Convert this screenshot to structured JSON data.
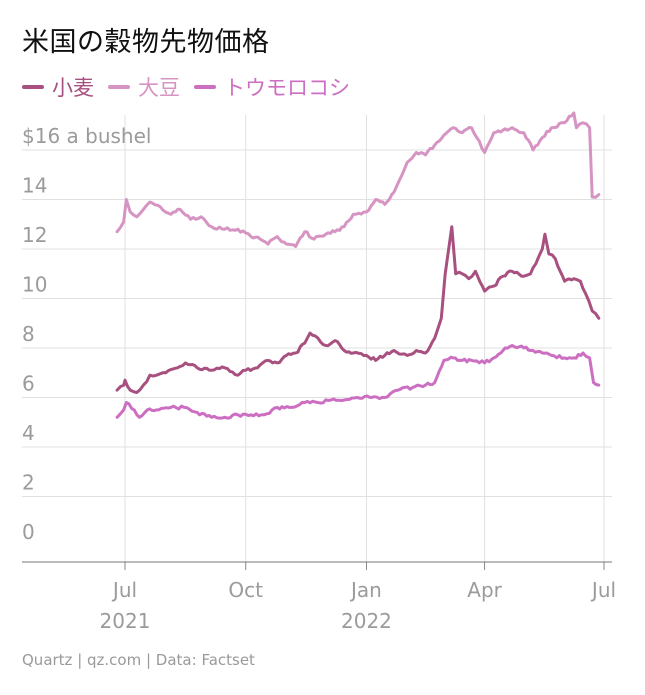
{
  "title": "米国の穀物先物価格",
  "footer": "Quartz | qz.com | Data: Factset",
  "colors": {
    "wheat": "#a8507f",
    "soy": "#d694c3",
    "corn": "#cc6fc2",
    "grid": "#e0e0e0",
    "axis_text": "#9b9b9b"
  },
  "chart_data": {
    "type": "line",
    "title": "米国の穀物先物価格",
    "ylabel": "",
    "xlabel": "",
    "ylim": [
      0,
      17
    ],
    "y_ticks": [
      0,
      2,
      4,
      6,
      8,
      10,
      12,
      14,
      16
    ],
    "y_tick_labels": [
      "0",
      "2",
      "4",
      "6",
      "8",
      "10",
      "12",
      "14",
      "$16 a bushel"
    ],
    "x_range": [
      "2021-06-01",
      "2022-07-01"
    ],
    "x_ticks": [
      {
        "date": "2021-07-01",
        "label": "Jul",
        "year": "2021"
      },
      {
        "date": "2021-10-01",
        "label": "Oct",
        "year": ""
      },
      {
        "date": "2022-01-01",
        "label": "Jan",
        "year": "2022"
      },
      {
        "date": "2022-04-01",
        "label": "Apr",
        "year": ""
      },
      {
        "date": "2022-07-01",
        "label": "Jul",
        "year": ""
      }
    ],
    "grid": true,
    "legend_position": "top-left",
    "series": [
      {
        "name": "小麦",
        "color": "#a8507f",
        "points": [
          [
            "2021-06-25",
            6.3
          ],
          [
            "2021-06-30",
            6.5
          ],
          [
            "2021-07-01",
            6.7
          ],
          [
            "2021-07-05",
            6.3
          ],
          [
            "2021-07-10",
            6.2
          ],
          [
            "2021-07-15",
            6.5
          ],
          [
            "2021-07-20",
            6.9
          ],
          [
            "2021-07-25",
            6.9
          ],
          [
            "2021-08-01",
            7.0
          ],
          [
            "2021-08-10",
            7.2
          ],
          [
            "2021-08-16",
            7.4
          ],
          [
            "2021-08-25",
            7.2
          ],
          [
            "2021-09-05",
            7.1
          ],
          [
            "2021-09-15",
            7.2
          ],
          [
            "2021-09-25",
            6.9
          ],
          [
            "2021-10-01",
            7.1
          ],
          [
            "2021-10-10",
            7.2
          ],
          [
            "2021-10-18",
            7.5
          ],
          [
            "2021-10-25",
            7.4
          ],
          [
            "2021-11-01",
            7.7
          ],
          [
            "2021-11-08",
            7.8
          ],
          [
            "2021-11-15",
            8.2
          ],
          [
            "2021-11-19",
            8.6
          ],
          [
            "2021-11-25",
            8.4
          ],
          [
            "2021-12-01",
            8.1
          ],
          [
            "2021-12-08",
            8.3
          ],
          [
            "2021-12-15",
            7.9
          ],
          [
            "2021-12-22",
            7.8
          ],
          [
            "2022-01-01",
            7.7
          ],
          [
            "2022-01-08",
            7.5
          ],
          [
            "2022-01-15",
            7.7
          ],
          [
            "2022-01-22",
            7.9
          ],
          [
            "2022-02-01",
            7.7
          ],
          [
            "2022-02-08",
            7.9
          ],
          [
            "2022-02-15",
            7.8
          ],
          [
            "2022-02-22",
            8.4
          ],
          [
            "2022-02-27",
            9.2
          ],
          [
            "2022-03-02",
            11.0
          ],
          [
            "2022-03-07",
            12.9
          ],
          [
            "2022-03-10",
            11.0
          ],
          [
            "2022-03-15",
            11.0
          ],
          [
            "2022-03-20",
            10.8
          ],
          [
            "2022-03-25",
            11.1
          ],
          [
            "2022-04-01",
            10.3
          ],
          [
            "2022-04-08",
            10.5
          ],
          [
            "2022-04-15",
            10.9
          ],
          [
            "2022-04-22",
            11.1
          ],
          [
            "2022-05-01",
            10.9
          ],
          [
            "2022-05-06",
            11.0
          ],
          [
            "2022-05-10",
            11.4
          ],
          [
            "2022-05-15",
            12.0
          ],
          [
            "2022-05-17",
            12.6
          ],
          [
            "2022-05-20",
            11.8
          ],
          [
            "2022-05-25",
            11.6
          ],
          [
            "2022-06-01",
            10.7
          ],
          [
            "2022-06-08",
            10.8
          ],
          [
            "2022-06-13",
            10.7
          ],
          [
            "2022-06-17",
            10.2
          ],
          [
            "2022-06-22",
            9.5
          ],
          [
            "2022-06-27",
            9.2
          ]
        ]
      },
      {
        "name": "大豆",
        "color": "#d694c3",
        "points": [
          [
            "2021-06-25",
            12.7
          ],
          [
            "2021-06-30",
            13.1
          ],
          [
            "2021-07-02",
            14.0
          ],
          [
            "2021-07-05",
            13.5
          ],
          [
            "2021-07-10",
            13.3
          ],
          [
            "2021-07-15",
            13.6
          ],
          [
            "2021-07-20",
            13.9
          ],
          [
            "2021-07-28",
            13.7
          ],
          [
            "2021-08-05",
            13.4
          ],
          [
            "2021-08-12",
            13.6
          ],
          [
            "2021-08-20",
            13.2
          ],
          [
            "2021-08-28",
            13.3
          ],
          [
            "2021-09-05",
            12.9
          ],
          [
            "2021-09-15",
            12.8
          ],
          [
            "2021-09-25",
            12.8
          ],
          [
            "2021-10-05",
            12.5
          ],
          [
            "2021-10-12",
            12.4
          ],
          [
            "2021-10-18",
            12.2
          ],
          [
            "2021-10-25",
            12.5
          ],
          [
            "2021-11-01",
            12.2
          ],
          [
            "2021-11-08",
            12.1
          ],
          [
            "2021-11-15",
            12.7
          ],
          [
            "2021-11-22",
            12.4
          ],
          [
            "2021-12-01",
            12.6
          ],
          [
            "2021-12-08",
            12.7
          ],
          [
            "2021-12-15",
            12.9
          ],
          [
            "2021-12-22",
            13.4
          ],
          [
            "2022-01-01",
            13.5
          ],
          [
            "2022-01-08",
            14.0
          ],
          [
            "2022-01-15",
            13.8
          ],
          [
            "2022-01-22",
            14.3
          ],
          [
            "2022-02-01",
            15.5
          ],
          [
            "2022-02-08",
            15.9
          ],
          [
            "2022-02-15",
            15.8
          ],
          [
            "2022-02-22",
            16.2
          ],
          [
            "2022-03-01",
            16.6
          ],
          [
            "2022-03-08",
            16.9
          ],
          [
            "2022-03-15",
            16.7
          ],
          [
            "2022-03-22",
            16.9
          ],
          [
            "2022-04-01",
            15.9
          ],
          [
            "2022-04-08",
            16.7
          ],
          [
            "2022-04-15",
            16.8
          ],
          [
            "2022-04-22",
            16.9
          ],
          [
            "2022-05-01",
            16.7
          ],
          [
            "2022-05-08",
            16.0
          ],
          [
            "2022-05-15",
            16.5
          ],
          [
            "2022-05-22",
            16.9
          ],
          [
            "2022-06-01",
            17.1
          ],
          [
            "2022-06-08",
            17.5
          ],
          [
            "2022-06-10",
            16.9
          ],
          [
            "2022-06-15",
            17.1
          ],
          [
            "2022-06-20",
            16.9
          ],
          [
            "2022-06-22",
            14.1
          ],
          [
            "2022-06-27",
            14.2
          ]
        ]
      },
      {
        "name": "トウモロコシ",
        "color": "#cc6fc2",
        "points": [
          [
            "2021-06-25",
            5.2
          ],
          [
            "2021-06-30",
            5.5
          ],
          [
            "2021-07-02",
            5.8
          ],
          [
            "2021-07-08",
            5.5
          ],
          [
            "2021-07-12",
            5.2
          ],
          [
            "2021-07-18",
            5.5
          ],
          [
            "2021-07-25",
            5.5
          ],
          [
            "2021-08-05",
            5.6
          ],
          [
            "2021-08-15",
            5.6
          ],
          [
            "2021-08-25",
            5.4
          ],
          [
            "2021-09-05",
            5.2
          ],
          [
            "2021-09-15",
            5.2
          ],
          [
            "2021-09-25",
            5.3
          ],
          [
            "2021-10-05",
            5.3
          ],
          [
            "2021-10-15",
            5.3
          ],
          [
            "2021-10-25",
            5.6
          ],
          [
            "2021-11-05",
            5.6
          ],
          [
            "2021-11-15",
            5.8
          ],
          [
            "2021-11-25",
            5.8
          ],
          [
            "2021-12-05",
            5.9
          ],
          [
            "2021-12-15",
            5.9
          ],
          [
            "2021-12-25",
            6.0
          ],
          [
            "2022-01-05",
            6.0
          ],
          [
            "2022-01-15",
            6.0
          ],
          [
            "2022-01-25",
            6.3
          ],
          [
            "2022-02-05",
            6.4
          ],
          [
            "2022-02-15",
            6.5
          ],
          [
            "2022-02-22",
            6.6
          ],
          [
            "2022-03-01",
            7.5
          ],
          [
            "2022-03-08",
            7.6
          ],
          [
            "2022-03-15",
            7.5
          ],
          [
            "2022-03-22",
            7.5
          ],
          [
            "2022-04-01",
            7.4
          ],
          [
            "2022-04-08",
            7.6
          ],
          [
            "2022-04-15",
            7.9
          ],
          [
            "2022-04-22",
            8.1
          ],
          [
            "2022-05-01",
            8.0
          ],
          [
            "2022-05-08",
            7.9
          ],
          [
            "2022-05-15",
            7.8
          ],
          [
            "2022-05-22",
            7.7
          ],
          [
            "2022-06-01",
            7.6
          ],
          [
            "2022-06-08",
            7.6
          ],
          [
            "2022-06-15",
            7.8
          ],
          [
            "2022-06-20",
            7.6
          ],
          [
            "2022-06-23",
            6.6
          ],
          [
            "2022-06-27",
            6.5
          ]
        ]
      }
    ]
  }
}
